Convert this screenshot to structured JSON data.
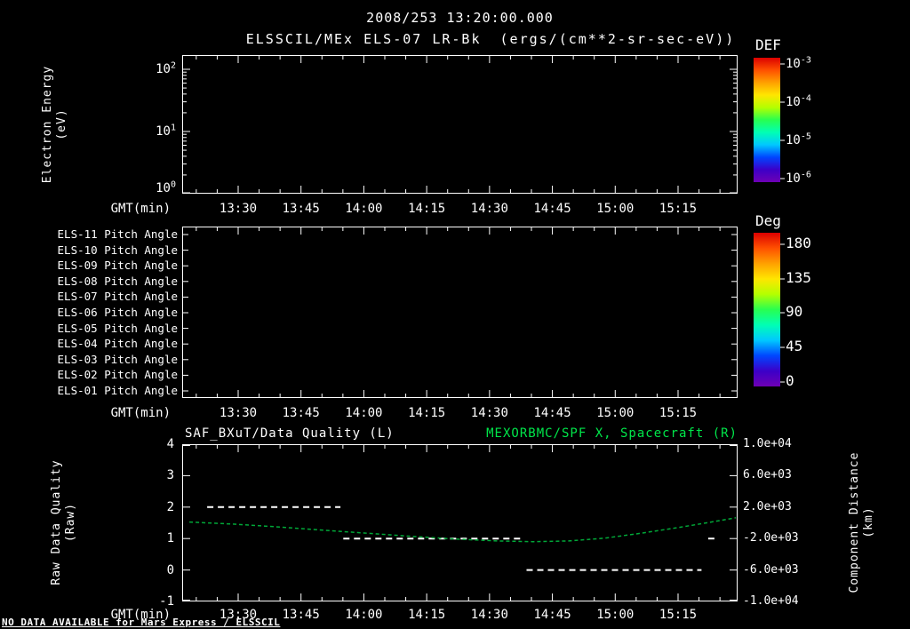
{
  "colors": {
    "background": "#000000",
    "foreground": "#ffffff",
    "title_green": "#00e64a",
    "curve_green": "#00a838",
    "rainbow": [
      "#dc0000",
      "#ff5000",
      "#ffa000",
      "#ffe600",
      "#b4ff00",
      "#28ff50",
      "#00ffb4",
      "#00c8ff",
      "#0046ff",
      "#3c00c8",
      "#6e00b4"
    ]
  },
  "header": {
    "datetime": "2008/253 13:20:00.000",
    "instrument_title": "ELSSCIL/MEx ELS-07 LR-Bk",
    "units": "(ergs/(cm**2-sr-sec-eV))"
  },
  "footer": {
    "no_data_message": "NO DATA AVAILABLE for Mars Express / ELSSCIL"
  },
  "chart_data": [
    {
      "id": "electron-energy-spectrogram",
      "type": "heatmap",
      "title": "ELSSCIL/MEx ELS-07 LR-Bk (ergs/(cm**2-sr-sec-eV))",
      "xlabel": "GMT(min)",
      "x_ticks": [
        "13:30",
        "13:45",
        "14:00",
        "14:15",
        "14:30",
        "14:45",
        "15:00",
        "15:15"
      ],
      "ylabel_line1": "Electron Energy",
      "ylabel_line2": "(eV)",
      "y_scale": "log",
      "y_ticks": [
        {
          "base": "10",
          "exp": "2"
        },
        {
          "base": "10",
          "exp": "1"
        },
        {
          "base": "10",
          "exp": "0"
        }
      ],
      "colorbar": {
        "label": "DEF",
        "ticks": [
          {
            "base": "10",
            "exp": "-3"
          },
          {
            "base": "10",
            "exp": "-4"
          },
          {
            "base": "10",
            "exp": "-5"
          },
          {
            "base": "10",
            "exp": "-6"
          }
        ]
      },
      "values": []
    },
    {
      "id": "pitch-angle-panel",
      "type": "heatmap",
      "xlabel": "GMT(min)",
      "x_ticks": [
        "13:30",
        "13:45",
        "14:00",
        "14:15",
        "14:30",
        "14:45",
        "15:00",
        "15:15"
      ],
      "row_labels": [
        "ELS-11 Pitch Angle",
        "ELS-10 Pitch Angle",
        "ELS-09 Pitch Angle",
        "ELS-08 Pitch Angle",
        "ELS-07 Pitch Angle",
        "ELS-06 Pitch Angle",
        "ELS-05 Pitch Angle",
        "ELS-04 Pitch Angle",
        "ELS-03 Pitch Angle",
        "ELS-02 Pitch Angle",
        "ELS-01 Pitch Angle"
      ],
      "colorbar": {
        "label": "Deg",
        "ticks": [
          "180",
          "135",
          "90",
          "45",
          "0"
        ]
      },
      "values": []
    },
    {
      "id": "quality-and-distance",
      "type": "line",
      "title_left": "SAF_BXuT/Data Quality (L)",
      "title_right": "MEXORBMC/SPF X, Spacecraft (R)",
      "xlabel": "GMT(min)",
      "x_ticks": [
        "13:30",
        "13:45",
        "14:00",
        "14:15",
        "14:30",
        "14:45",
        "15:00",
        "15:15"
      ],
      "left_axis": {
        "label_line1": "Raw Data Quality",
        "label_line2": "(Raw)",
        "range": [
          -1,
          4
        ],
        "ticks": [
          "4",
          "3",
          "2",
          "1",
          "0",
          "-1"
        ]
      },
      "right_axis": {
        "label_line1": "Component Distance",
        "label_line2": "(km)",
        "range": [
          -10000,
          10000
        ],
        "ticks": [
          "1.0e+04",
          "6.0e+03",
          "2.0e+03",
          "-2.0e+03",
          "-6.0e+03",
          "-1.0e+04"
        ]
      },
      "series": [
        {
          "name": "SAF_BXuT/Data Quality (L)",
          "axis": "left",
          "color": "#ffffff",
          "line_style": "dashed",
          "segments": [
            {
              "value": 2,
              "x_frac_start": 0.045,
              "x_frac_end": 0.285
            },
            {
              "value": 1,
              "x_frac_start": 0.29,
              "x_frac_end": 0.615
            },
            {
              "value": 0,
              "x_frac_start": 0.62,
              "x_frac_end": 0.935
            },
            {
              "value": 1,
              "x_frac_start": 0.947,
              "x_frac_end": 0.963
            }
          ]
        },
        {
          "name": "MEXORBMC/SPF X, Spacecraft (R)",
          "axis": "right",
          "color": "#00a838",
          "line_style": "dashed",
          "points": [
            [
              0.013,
              100
            ],
            [
              0.088,
              -150
            ],
            [
              0.168,
              -500
            ],
            [
              0.248,
              -900
            ],
            [
              0.328,
              -1300
            ],
            [
              0.408,
              -1700
            ],
            [
              0.488,
              -2050
            ],
            [
              0.568,
              -2300
            ],
            [
              0.632,
              -2400
            ],
            [
              0.696,
              -2300
            ],
            [
              0.76,
              -1950
            ],
            [
              0.824,
              -1350
            ],
            [
              0.888,
              -650
            ],
            [
              0.936,
              -100
            ],
            [
              0.997,
              640
            ]
          ]
        }
      ]
    }
  ]
}
